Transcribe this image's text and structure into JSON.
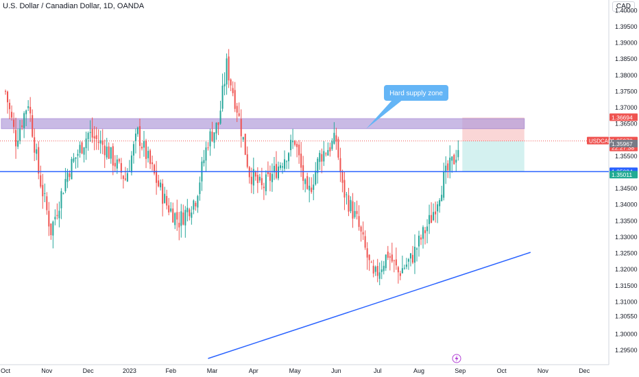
{
  "header": {
    "title": "U.S. Dollar / Canadian Dollar, 1D, OANDA",
    "currency": "CAD"
  },
  "colors": {
    "up": "#26a69a",
    "down": "#ef5350",
    "trendline": "#2962ff",
    "supply_zone_fill": "#b39ddb",
    "supply_zone_border": "#9575cd",
    "callout": "#64b5f6",
    "stop_zone": "#f8c8c8",
    "target_zone": "#cdeeed",
    "last_price": "#ef5350",
    "level_label": "#2962ff",
    "gray_label": "#787b86",
    "green_label": "#22ab94"
  },
  "chart_data": {
    "type": "candlestick",
    "symbol": "USDCAD",
    "timeframe": "1D",
    "ylim": [
      1.2925,
      1.4005
    ],
    "y_ticks": [
      1.295,
      1.3,
      1.3055,
      1.31,
      1.315,
      1.32,
      1.325,
      1.33,
      1.335,
      1.34,
      1.345,
      1.35,
      1.355,
      1.36,
      1.365,
      1.37,
      1.375,
      1.38,
      1.385,
      1.39,
      1.395,
      1.4
    ],
    "y_tick_labels": [
      "1.29500",
      "1.30000",
      "1.30550",
      "1.31000",
      "1.31500",
      "1.32000",
      "1.32500",
      "1.33000",
      "1.33500",
      "1.34000",
      "1.34500",
      "1.35000",
      "1.35500",
      "1.36000",
      "1.36500",
      "1.37000",
      "1.37500",
      "1.38000",
      "1.38500",
      "1.39000",
      "1.39500",
      "1.40000"
    ],
    "x_labels": [
      {
        "label": "Oct",
        "month": 0
      },
      {
        "label": "Nov",
        "month": 1
      },
      {
        "label": "Dec",
        "month": 2
      },
      {
        "label": "2023",
        "month": 3
      },
      {
        "label": "Feb",
        "month": 4
      },
      {
        "label": "Mar",
        "month": 5
      },
      {
        "label": "Apr",
        "month": 6
      },
      {
        "label": "May",
        "month": 7
      },
      {
        "label": "Jun",
        "month": 8
      },
      {
        "label": "Jul",
        "month": 9
      },
      {
        "label": "Aug",
        "month": 10
      },
      {
        "label": "Sep",
        "month": 11
      },
      {
        "label": "Oct",
        "month": 12
      },
      {
        "label": "Nov",
        "month": 13
      },
      {
        "label": "Dec",
        "month": 14
      }
    ],
    "close_path": [
      [
        0,
        1.375
      ],
      [
        0.25,
        1.36
      ],
      [
        0.55,
        1.372
      ],
      [
        0.8,
        1.35
      ],
      [
        1.1,
        1.332
      ],
      [
        1.5,
        1.35
      ],
      [
        2.0,
        1.362
      ],
      [
        2.4,
        1.358
      ],
      [
        2.9,
        1.348
      ],
      [
        3.2,
        1.362
      ],
      [
        3.6,
        1.349
      ],
      [
        3.9,
        1.34
      ],
      [
        4.2,
        1.335
      ],
      [
        4.6,
        1.342
      ],
      [
        4.9,
        1.36
      ],
      [
        5.15,
        1.365
      ],
      [
        5.35,
        1.383
      ],
      [
        5.6,
        1.37
      ],
      [
        5.9,
        1.35
      ],
      [
        6.2,
        1.345
      ],
      [
        6.5,
        1.35
      ],
      [
        7.0,
        1.36
      ],
      [
        7.3,
        1.342
      ],
      [
        7.6,
        1.355
      ],
      [
        8.0,
        1.36
      ],
      [
        8.15,
        1.345
      ],
      [
        8.5,
        1.335
      ],
      [
        8.9,
        1.317
      ],
      [
        9.25,
        1.325
      ],
      [
        9.5,
        1.319
      ],
      [
        9.8,
        1.323
      ],
      [
        10.3,
        1.336
      ],
      [
        10.6,
        1.348
      ],
      [
        10.85,
        1.354
      ],
      [
        11.0,
        1.3597
      ]
    ],
    "annotations": {
      "last_price": {
        "symbol": "USDCAD",
        "value": "1.35970",
        "countdown": "22:27:38"
      },
      "price_labels": [
        {
          "value": "1.36694",
          "role": "stop"
        },
        {
          "value": "1.35967",
          "role": "entry"
        },
        {
          "value": "1.35024",
          "role": "horizontal-level"
        },
        {
          "value": "1.35011",
          "role": "target"
        }
      ],
      "callout_text": "Hard supply zone",
      "supply_zone": {
        "low": 1.3635,
        "high": 1.3666,
        "from_month": -0.1,
        "to_month": 12.55
      },
      "horizontal_level": 1.35024,
      "position": {
        "stop": 1.36694,
        "entry": 1.35967,
        "target": 1.35011,
        "from_month": 11.05,
        "to_month": 12.55
      },
      "trendline": [
        {
          "month": 4.9,
          "price": 1.2925
        },
        {
          "month": 12.7,
          "price": 1.3253
        }
      ]
    }
  }
}
